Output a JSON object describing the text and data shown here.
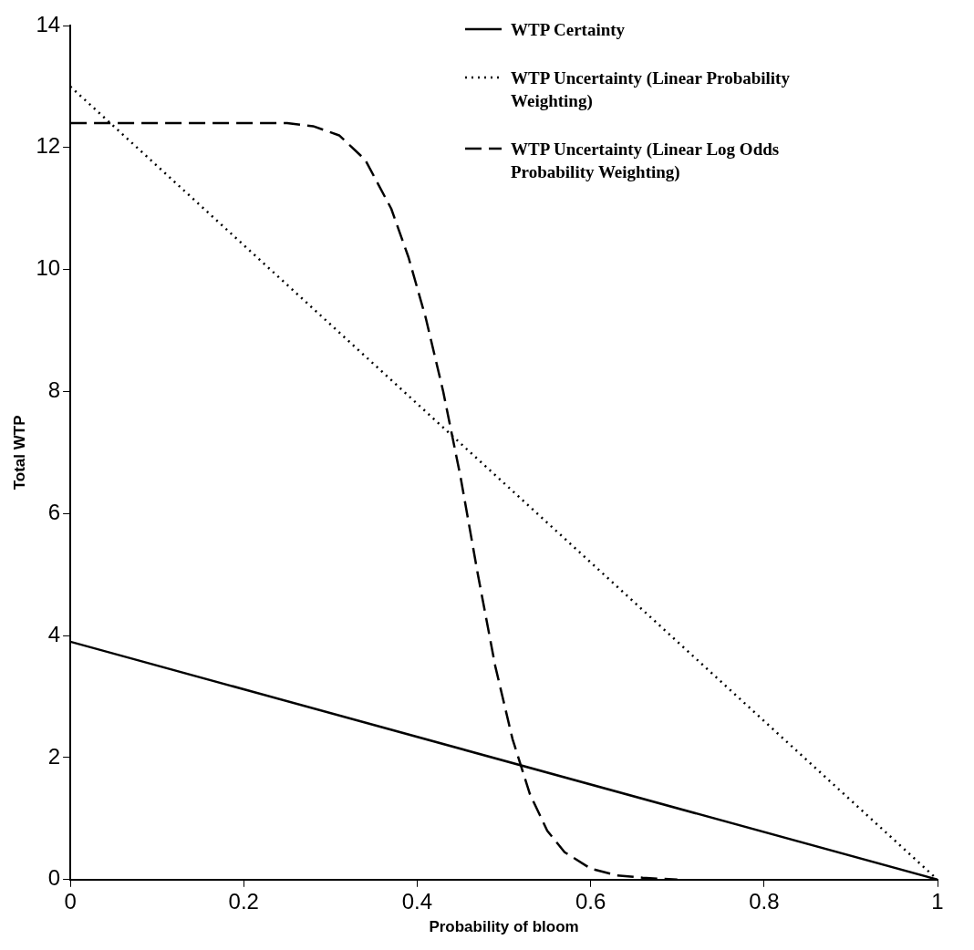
{
  "chart_data": {
    "type": "line",
    "xlabel": "Probability of bloom",
    "ylabel": "Total WTP",
    "xlim": [
      0,
      1
    ],
    "ylim": [
      0,
      14
    ],
    "xticks": [
      0,
      0.2,
      0.4,
      0.6,
      0.8,
      1
    ],
    "yticks": [
      0,
      2,
      4,
      6,
      8,
      10,
      12,
      14
    ],
    "grid": false,
    "legend": "top right",
    "marker": "none",
    "series": [
      {
        "name": "WTP Certainty",
        "color": "#000000",
        "line_style": "solid",
        "x": [
          0,
          1
        ],
        "values": [
          3.9,
          0
        ]
      },
      {
        "name": "WTP Uncertainty (Linear Probability Weighting)",
        "color": "#000000",
        "line_style": "dotted",
        "x": [
          0,
          1
        ],
        "values": [
          13,
          0
        ]
      },
      {
        "name": "WTP Uncertainty (Linear Log Odds Probability Weighting)",
        "color": "#000000",
        "line_style": "dashed",
        "x": [
          0,
          0.1,
          0.2,
          0.25,
          0.28,
          0.31,
          0.34,
          0.37,
          0.39,
          0.41,
          0.43,
          0.45,
          0.47,
          0.49,
          0.51,
          0.53,
          0.55,
          0.57,
          0.6,
          0.63,
          0.66,
          0.7
        ],
        "values": [
          12.4,
          12.4,
          12.4,
          12.4,
          12.35,
          12.2,
          11.8,
          11.0,
          10.2,
          9.2,
          8.0,
          6.6,
          5.0,
          3.5,
          2.3,
          1.4,
          0.8,
          0.45,
          0.18,
          0.07,
          0.03,
          0
        ]
      }
    ]
  }
}
